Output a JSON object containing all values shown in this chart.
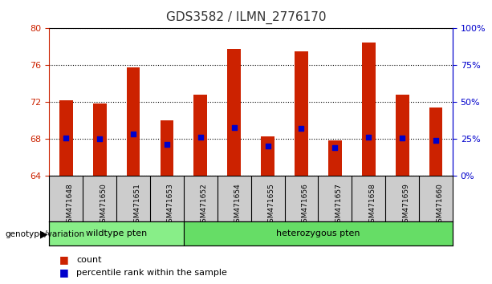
{
  "title": "GDS3582 / ILMN_2776170",
  "samples": [
    "GSM471648",
    "GSM471650",
    "GSM471651",
    "GSM471653",
    "GSM471652",
    "GSM471654",
    "GSM471655",
    "GSM471656",
    "GSM471657",
    "GSM471658",
    "GSM471659",
    "GSM471660"
  ],
  "bar_values": [
    72.2,
    71.9,
    75.8,
    70.0,
    72.8,
    77.8,
    68.3,
    77.5,
    67.9,
    78.5,
    72.8,
    71.4
  ],
  "bar_base": 64,
  "percentile_values": [
    68.1,
    68.0,
    68.6,
    67.4,
    68.2,
    69.3,
    67.3,
    69.2,
    67.1,
    68.2,
    68.1,
    67.9
  ],
  "bar_color": "#cc2200",
  "dot_color": "#0000cc",
  "ylim_left": [
    64,
    80
  ],
  "ylim_right": [
    0,
    100
  ],
  "yticks_left": [
    64,
    68,
    72,
    76,
    80
  ],
  "yticks_right": [
    0,
    25,
    50,
    75,
    100
  ],
  "groups": [
    {
      "label": "wildtype pten",
      "start": 0,
      "end": 4,
      "color": "#88ee88"
    },
    {
      "label": "heterozygous pten",
      "start": 4,
      "end": 12,
      "color": "#66dd66"
    }
  ],
  "genotype_label": "genotype/variation",
  "legend_count_label": "count",
  "legend_percentile_label": "percentile rank within the sample",
  "title_color": "#333333",
  "left_axis_color": "#cc2200",
  "right_axis_color": "#0000cc",
  "background_color": "#ffffff",
  "tick_bg_color": "#cccccc"
}
